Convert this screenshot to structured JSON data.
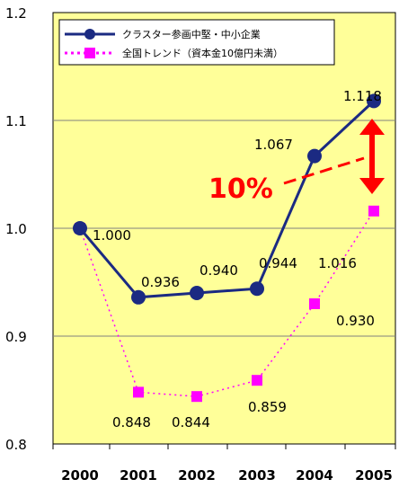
{
  "chart_data": {
    "type": "line",
    "categories": [
      "2000",
      "2001",
      "2002",
      "2003",
      "2004",
      "2005"
    ],
    "ylim": [
      0.8,
      1.2
    ],
    "yticks": [
      "0.8",
      "0.9",
      "1.0",
      "1.1",
      "1.2"
    ],
    "grid": true,
    "legend_position": "top-left",
    "series": [
      {
        "name": "クラスター参画中堅・中小企業",
        "values": [
          1.0,
          0.936,
          0.94,
          0.944,
          1.067,
          1.118
        ],
        "labels": [
          "1.000",
          "0.936",
          "0.940",
          "0.944",
          "1.067",
          "1.118"
        ],
        "color": "#1b2a82",
        "marker": "circle",
        "line": "solid"
      },
      {
        "name": "全国トレンド（資本金10億円未満）",
        "values": [
          1.0,
          0.848,
          0.844,
          0.859,
          0.93,
          1.016
        ],
        "labels": [
          "",
          "0.848",
          "0.844",
          "0.859",
          "0.930",
          "1.016"
        ],
        "color": "#ff00ff",
        "marker": "square",
        "line": "dotted"
      }
    ],
    "annotation": {
      "text": "10%",
      "color": "#ff0000"
    },
    "plot_background": "#ffff99"
  }
}
